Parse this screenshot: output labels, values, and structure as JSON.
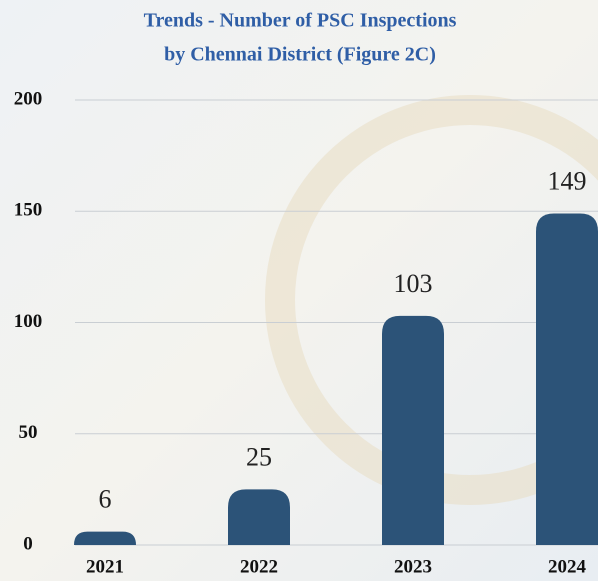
{
  "chart_data": {
    "type": "bar",
    "title": [
      "Trends - Number of PSC Inspections",
      "by Chennai District (Figure 2C)"
    ],
    "categories": [
      "2021",
      "2022",
      "2023",
      "2024"
    ],
    "values": [
      6,
      25,
      103,
      149
    ],
    "color": "#2c5378",
    "ylim": [
      0,
      200
    ],
    "yticks": [
      0,
      50,
      100,
      150,
      200
    ],
    "grid": true
  }
}
